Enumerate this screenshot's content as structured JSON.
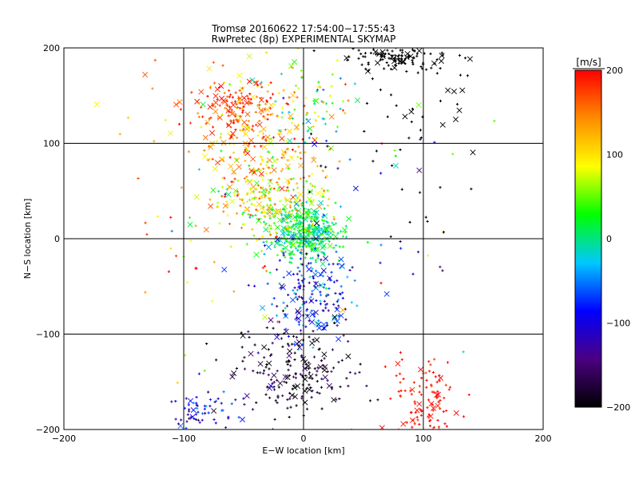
{
  "chart_data": {
    "type": "scatter",
    "title": "Tromsø 20160622 17:54:00−17:55:43",
    "subtitle": "RwPretec (8p) EXPERIMENTAL SKYMAP",
    "xlabel": "E−W location [km]",
    "ylabel": "N−S location [km]",
    "xlim": [
      -200,
      200
    ],
    "ylim": [
      -200,
      200
    ],
    "xticks": [
      -200,
      -100,
      0,
      100,
      200
    ],
    "yticks": [
      -200,
      -100,
      0,
      100,
      200
    ],
    "xtick_labels": [
      "−200",
      "−100",
      "0",
      "100",
      "200"
    ],
    "ytick_labels": [
      "−200",
      "−100",
      "0",
      "100",
      "200"
    ],
    "grid": true,
    "markers": [
      "+",
      "x"
    ],
    "colorbar": {
      "label": "[m/s]",
      "min": -200,
      "max": 200,
      "ticks": [
        200,
        100,
        0,
        -100,
        -200
      ],
      "tick_labels": [
        "200",
        "100",
        "0",
        "−100",
        "−200"
      ],
      "placement": "right",
      "colors": [
        "#000000",
        "#4b0082",
        "#0000ff",
        "#00c8ff",
        "#00ff00",
        "#ffff00",
        "#ff8c00",
        "#ff0000"
      ]
    },
    "clusters": [
      {
        "center": [
          2,
          5
        ],
        "spread": [
          14,
          14
        ],
        "count": 380,
        "velocity": 10,
        "velocity_spread": 25
      },
      {
        "center": [
          -40,
          95
        ],
        "spread": [
          22,
          40
        ],
        "count": 260,
        "velocity": 130,
        "velocity_spread": 45
      },
      {
        "center": [
          -60,
          140
        ],
        "spread": [
          18,
          14
        ],
        "count": 120,
        "velocity": 180,
        "velocity_spread": 25
      },
      {
        "center": [
          -25,
          40
        ],
        "spread": [
          22,
          20
        ],
        "count": 180,
        "velocity": 80,
        "velocity_spread": 45
      },
      {
        "center": [
          5,
          140
        ],
        "spread": [
          18,
          25
        ],
        "count": 70,
        "velocity": 40,
        "velocity_spread": 60
      },
      {
        "center": [
          75,
          190
        ],
        "spread": [
          22,
          8
        ],
        "count": 120,
        "velocity": -200,
        "velocity_spread": 0
      },
      {
        "center": [
          100,
          130
        ],
        "spread": [
          30,
          40
        ],
        "count": 35,
        "velocity": -200,
        "velocity_spread": 0
      },
      {
        "center": [
          5,
          -60
        ],
        "spread": [
          18,
          25
        ],
        "count": 200,
        "velocity": -80,
        "velocity_spread": 40
      },
      {
        "center": [
          -5,
          -140
        ],
        "spread": [
          25,
          25
        ],
        "count": 200,
        "velocity": -180,
        "velocity_spread": 25
      },
      {
        "center": [
          100,
          -170
        ],
        "spread": [
          15,
          25
        ],
        "count": 110,
        "velocity": 195,
        "velocity_spread": 10
      },
      {
        "center": [
          -85,
          -180
        ],
        "spread": [
          15,
          10
        ],
        "count": 60,
        "velocity": -110,
        "velocity_spread": 30
      },
      {
        "center": [
          -90,
          30
        ],
        "spread": [
          45,
          90
        ],
        "count": 70,
        "velocity": 120,
        "velocity_spread": 70
      },
      {
        "center": [
          60,
          30
        ],
        "spread": [
          50,
          60
        ],
        "count": 60,
        "velocity": -100,
        "velocity_spread": 120
      }
    ]
  }
}
